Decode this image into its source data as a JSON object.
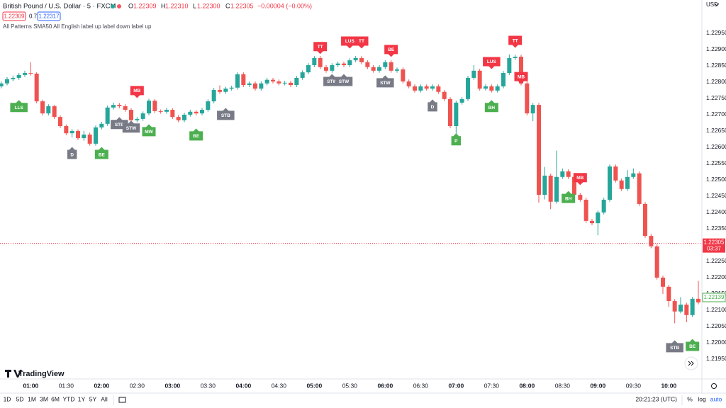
{
  "header": {
    "symbol": "British Pound / U.S. Dollar · 5 · FXCM",
    "ohlc": [
      {
        "label": "O",
        "value": "1.22309"
      },
      {
        "label": "H",
        "value": "1.22310"
      },
      {
        "label": "L",
        "value": "1.22300"
      },
      {
        "label": "C",
        "value": "1.22305"
      }
    ],
    "change": "−0.00004 (−0.00%)",
    "sell": "1.22309",
    "spread": "0.7",
    "buy": "1.22317",
    "indicator": "All Patterns SMA50 All English label up label down label up"
  },
  "currency": "USD",
  "logo": "TradingView",
  "toolbar": {
    "ranges": [
      "1D",
      "5D",
      "1M",
      "3M",
      "6M",
      "YTD",
      "1Y",
      "5Y",
      "All"
    ],
    "clock": "20:21:23 (UTC)",
    "percent": "%",
    "log": "log",
    "auto": "auto"
  },
  "chart_data": {
    "type": "candlestick",
    "up_color": "#26a69a",
    "down_color": "#ef5350",
    "xlim": [
      "00:34",
      "10:28"
    ],
    "xticks": [
      "01:00",
      "01:30",
      "02:00",
      "02:30",
      "03:00",
      "03:30",
      "04:00",
      "04:30",
      "05:00",
      "05:30",
      "06:00",
      "06:30",
      "07:00",
      "07:30",
      "08:00",
      "08:30",
      "09:00",
      "09:30",
      "10:00"
    ],
    "ylim": [
      1.21889,
      1.23052
    ],
    "yticks": [
      {
        "value": 1.2295,
        "label": "1.22950"
      },
      {
        "value": 1.229,
        "label": "1.22900"
      },
      {
        "value": 1.2285,
        "label": "1.22850"
      },
      {
        "value": 1.228,
        "label": "1.22800"
      },
      {
        "value": 1.2275,
        "label": "1.22750"
      },
      {
        "value": 1.227,
        "label": "1.22700"
      },
      {
        "value": 1.2265,
        "label": "1.22650"
      },
      {
        "value": 1.226,
        "label": "1.22600"
      },
      {
        "value": 1.2255,
        "label": "1.22550"
      },
      {
        "value": 1.225,
        "label": "1.22500"
      },
      {
        "value": 1.2245,
        "label": "1.22450"
      },
      {
        "value": 1.224,
        "label": "1.22400"
      },
      {
        "value": 1.2235,
        "label": "1.22350"
      },
      {
        "value": 1.2225,
        "label": "1.22250"
      },
      {
        "value": 1.222,
        "label": "1.22200"
      },
      {
        "value": 1.2215,
        "label": "1.22150"
      },
      {
        "value": 1.221,
        "label": "1.22100"
      },
      {
        "value": 1.2205,
        "label": "1.22050"
      },
      {
        "value": 1.22,
        "label": "1.22000"
      },
      {
        "value": 1.2195,
        "label": "1.21950"
      }
    ],
    "x": [
      "00:35",
      "00:40",
      "00:45",
      "00:50",
      "00:55",
      "01:00",
      "01:05",
      "01:10",
      "01:15",
      "01:20",
      "01:25",
      "01:30",
      "01:35",
      "01:40",
      "01:45",
      "01:50",
      "01:55",
      "02:00",
      "02:05",
      "02:10",
      "02:15",
      "02:20",
      "02:25",
      "02:30",
      "02:35",
      "02:40",
      "02:45",
      "02:50",
      "02:55",
      "03:00",
      "03:05",
      "03:10",
      "03:15",
      "03:20",
      "03:25",
      "03:30",
      "03:35",
      "03:40",
      "03:45",
      "03:50",
      "03:55",
      "04:00",
      "04:05",
      "04:10",
      "04:15",
      "04:20",
      "04:25",
      "04:30",
      "04:35",
      "04:40",
      "04:45",
      "04:50",
      "04:55",
      "05:00",
      "05:05",
      "05:10",
      "05:15",
      "05:20",
      "05:25",
      "05:30",
      "05:35",
      "05:40",
      "05:45",
      "05:50",
      "05:55",
      "06:00",
      "06:05",
      "06:10",
      "06:15",
      "06:20",
      "06:25",
      "06:30",
      "06:35",
      "06:40",
      "06:45",
      "06:50",
      "06:55",
      "07:00",
      "07:05",
      "07:10",
      "07:15",
      "07:20",
      "07:25",
      "07:30",
      "07:35",
      "07:40",
      "07:45",
      "07:50",
      "07:55",
      "08:00",
      "08:05",
      "08:10",
      "08:15",
      "08:20",
      "08:25",
      "08:30",
      "08:35",
      "08:40",
      "08:45",
      "08:50",
      "08:55",
      "09:00",
      "09:05",
      "09:10",
      "09:15",
      "09:20",
      "09:25",
      "09:30",
      "09:35",
      "09:40",
      "09:45",
      "09:50",
      "09:55",
      "10:00",
      "10:05",
      "10:10",
      "10:15",
      "10:20",
      "10:25"
    ],
    "ohlc": [
      [
        1.22787,
        1.22802,
        1.22781,
        1.22796
      ],
      [
        1.22796,
        1.22815,
        1.2279,
        1.22809
      ],
      [
        1.22809,
        1.2282,
        1.22803,
        1.22813
      ],
      [
        1.22813,
        1.22828,
        1.22807,
        1.22822
      ],
      [
        1.22822,
        1.22835,
        1.22816,
        1.22828
      ],
      [
        1.22828,
        1.22861,
        1.2282,
        1.22826
      ],
      [
        1.22826,
        1.2283,
        1.22735,
        1.22741
      ],
      [
        1.22741,
        1.22746,
        1.22698,
        1.22704
      ],
      [
        1.22704,
        1.22732,
        1.22698,
        1.22726
      ],
      [
        1.22726,
        1.2273,
        1.22687,
        1.22693
      ],
      [
        1.22693,
        1.22698,
        1.22659,
        1.22665
      ],
      [
        1.22665,
        1.2267,
        1.22637,
        1.22643
      ],
      [
        1.22643,
        1.22656,
        1.2263,
        1.2265
      ],
      [
        1.2265,
        1.22655,
        1.22622,
        1.22628
      ],
      [
        1.22628,
        1.2265,
        1.2262,
        1.22639
      ],
      [
        1.22639,
        1.22645,
        1.22605,
        1.22611
      ],
      [
        1.22611,
        1.22667,
        1.22605,
        1.22661
      ],
      [
        1.22661,
        1.22678,
        1.22655,
        1.22672
      ],
      [
        1.22672,
        1.22728,
        1.22666,
        1.22722
      ],
      [
        1.22722,
        1.22737,
        1.22716,
        1.2273
      ],
      [
        1.2273,
        1.22736,
        1.2272,
        1.22726
      ],
      [
        1.22726,
        1.22732,
        1.22709,
        1.22715
      ],
      [
        1.22715,
        1.2272,
        1.22677,
        1.22683
      ],
      [
        1.22683,
        1.22693,
        1.22677,
        1.22687
      ],
      [
        1.22687,
        1.2271,
        1.22681,
        1.22704
      ],
      [
        1.22704,
        1.22749,
        1.22698,
        1.22743
      ],
      [
        1.22743,
        1.22748,
        1.22705,
        1.22711
      ],
      [
        1.22711,
        1.22716,
        1.22703,
        1.22709
      ],
      [
        1.22709,
        1.22721,
        1.22703,
        1.22715
      ],
      [
        1.22715,
        1.2272,
        1.22687,
        1.22693
      ],
      [
        1.22693,
        1.22699,
        1.22677,
        1.22683
      ],
      [
        1.22683,
        1.22706,
        1.22677,
        1.227
      ],
      [
        1.227,
        1.22715,
        1.22694,
        1.22709
      ],
      [
        1.22709,
        1.22714,
        1.22698,
        1.22704
      ],
      [
        1.22704,
        1.22721,
        1.22698,
        1.22715
      ],
      [
        1.22715,
        1.22747,
        1.22709,
        1.22741
      ],
      [
        1.22741,
        1.22782,
        1.22735,
        1.22776
      ],
      [
        1.22776,
        1.2279,
        1.22764,
        1.2277
      ],
      [
        1.2277,
        1.22786,
        1.22764,
        1.2278
      ],
      [
        1.2278,
        1.22789,
        1.22774,
        1.22783
      ],
      [
        1.22783,
        1.2283,
        1.22777,
        1.22824
      ],
      [
        1.22824,
        1.2283,
        1.22785,
        1.22791
      ],
      [
        1.22791,
        1.22802,
        1.22785,
        1.22796
      ],
      [
        1.22796,
        1.22802,
        1.22774,
        1.2278
      ],
      [
        1.2278,
        1.22802,
        1.22774,
        1.22796
      ],
      [
        1.22796,
        1.22813,
        1.2279,
        1.22807
      ],
      [
        1.22807,
        1.22813,
        1.22796,
        1.22802
      ],
      [
        1.22802,
        1.22808,
        1.2279,
        1.22796
      ],
      [
        1.22796,
        1.22804,
        1.2279,
        1.22798
      ],
      [
        1.22798,
        1.22804,
        1.22785,
        1.22791
      ],
      [
        1.22791,
        1.22819,
        1.22785,
        1.22813
      ],
      [
        1.22813,
        1.22836,
        1.22807,
        1.2283
      ],
      [
        1.2283,
        1.22858,
        1.22824,
        1.22852
      ],
      [
        1.22852,
        1.2288,
        1.22846,
        1.22874
      ],
      [
        1.22874,
        1.2288,
        1.2284,
        1.22846
      ],
      [
        1.22846,
        1.22852,
        1.22829,
        1.22835
      ],
      [
        1.22835,
        1.22858,
        1.22829,
        1.22852
      ],
      [
        1.22852,
        1.22863,
        1.22846,
        1.22857
      ],
      [
        1.22857,
        1.22863,
        1.22846,
        1.22852
      ],
      [
        1.22852,
        1.22873,
        1.22846,
        1.22867
      ],
      [
        1.22867,
        1.2288,
        1.22861,
        1.22874
      ],
      [
        1.22874,
        1.2288,
        1.22855,
        1.22861
      ],
      [
        1.22861,
        1.22867,
        1.2284,
        1.22846
      ],
      [
        1.22846,
        1.22852,
        1.22829,
        1.22835
      ],
      [
        1.22835,
        1.22852,
        1.22829,
        1.22846
      ],
      [
        1.22846,
        1.22867,
        1.2284,
        1.22861
      ],
      [
        1.22861,
        1.22867,
        1.22829,
        1.22835
      ],
      [
        1.22835,
        1.22845,
        1.22829,
        1.22839
      ],
      [
        1.22839,
        1.22845,
        1.22796,
        1.22802
      ],
      [
        1.22802,
        1.22808,
        1.22781,
        1.22787
      ],
      [
        1.22787,
        1.22793,
        1.22768,
        1.22774
      ],
      [
        1.22774,
        1.22793,
        1.22768,
        1.22787
      ],
      [
        1.22787,
        1.22793,
        1.22774,
        1.2278
      ],
      [
        1.2278,
        1.22793,
        1.22774,
        1.22787
      ],
      [
        1.22787,
        1.22793,
        1.22764,
        1.2277
      ],
      [
        1.2277,
        1.22776,
        1.22742,
        1.22748
      ],
      [
        1.22748,
        1.22754,
        1.22659,
        1.22665
      ],
      [
        1.22665,
        1.22743,
        1.2264,
        1.22737
      ],
      [
        1.22737,
        1.22754,
        1.22731,
        1.22748
      ],
      [
        1.22748,
        1.22819,
        1.22742,
        1.22813
      ],
      [
        1.22813,
        1.22852,
        1.22807,
        1.22835
      ],
      [
        1.22835,
        1.22841,
        1.22774,
        1.2278
      ],
      [
        1.2278,
        1.22793,
        1.22774,
        1.22787
      ],
      [
        1.22787,
        1.22793,
        1.22768,
        1.22774
      ],
      [
        1.22774,
        1.22793,
        1.22768,
        1.22787
      ],
      [
        1.22787,
        1.22834,
        1.22781,
        1.22828
      ],
      [
        1.22828,
        1.22885,
        1.22822,
        1.22874
      ],
      [
        1.22874,
        1.22884,
        1.22868,
        1.22878
      ],
      [
        1.22878,
        1.22884,
        1.2279,
        1.22796
      ],
      [
        1.22796,
        1.22802,
        1.22698,
        1.22704
      ],
      [
        1.22704,
        1.22736,
        1.2268,
        1.2273
      ],
      [
        1.2273,
        1.22736,
        1.2243,
        1.22454
      ],
      [
        1.22454,
        1.2254,
        1.2244,
        1.22513
      ],
      [
        1.22513,
        1.22519,
        1.2241,
        1.22433
      ],
      [
        1.22433,
        1.2259,
        1.22427,
        1.22509
      ],
      [
        1.22509,
        1.22535,
        1.22503,
        1.22526
      ],
      [
        1.22526,
        1.22532,
        1.22503,
        1.22509
      ],
      [
        1.22509,
        1.22515,
        1.22448,
        1.22454
      ],
      [
        1.22454,
        1.2246,
        1.22433,
        1.22439
      ],
      [
        1.22439,
        1.22445,
        1.22368,
        1.22374
      ],
      [
        1.22374,
        1.2238,
        1.22361,
        1.22367
      ],
      [
        1.22367,
        1.22406,
        1.2233,
        1.224
      ],
      [
        1.224,
        1.22445,
        1.22394,
        1.22439
      ],
      [
        1.22439,
        1.22547,
        1.22433,
        1.22541
      ],
      [
        1.22541,
        1.22547,
        1.22492,
        1.22498
      ],
      [
        1.22498,
        1.22504,
        1.22466,
        1.22472
      ],
      [
        1.22472,
        1.2253,
        1.22466,
        1.22509
      ],
      [
        1.22509,
        1.22535,
        1.22503,
        1.2252
      ],
      [
        1.2252,
        1.22526,
        1.2242,
        1.22426
      ],
      [
        1.22426,
        1.22432,
        1.22322,
        1.22328
      ],
      [
        1.22328,
        1.22334,
        1.2229,
        1.22296
      ],
      [
        1.22296,
        1.22302,
        1.22194,
        1.222
      ],
      [
        1.222,
        1.22206,
        1.2215,
        1.22172
      ],
      [
        1.22172,
        1.22178,
        1.2211,
        1.22128
      ],
      [
        1.22128,
        1.22134,
        1.2206,
        1.22096
      ],
      [
        1.22096,
        1.2214,
        1.2209,
        1.22117
      ],
      [
        1.22117,
        1.22123,
        1.22063,
        1.22085
      ],
      [
        1.22085,
        1.22141,
        1.22079,
        1.22135
      ],
      [
        1.22135,
        1.2219,
        1.22118,
        1.22124
      ]
    ],
    "annotations": [
      {
        "text": "LLS",
        "x": "00:50",
        "y": 1.22722,
        "color": "#4caf50",
        "shape": "label_up"
      },
      {
        "text": "D",
        "x": "01:35",
        "y": 1.22578,
        "color": "#787b86",
        "shape": "label_up"
      },
      {
        "text": "BE",
        "x": "02:00",
        "y": 1.22578,
        "color": "#4caf50",
        "shape": "label_up"
      },
      {
        "text": "MB",
        "x": "02:30",
        "y": 1.22774,
        "color": "#f23645",
        "shape": "label_down"
      },
      {
        "text": "STB",
        "x": "02:15",
        "y": 1.2267,
        "color": "#787b86",
        "shape": "label_up"
      },
      {
        "text": "STW",
        "x": "02:25",
        "y": 1.22659,
        "color": "#787b86",
        "shape": "label_up"
      },
      {
        "text": "MW",
        "x": "02:40",
        "y": 1.22648,
        "color": "#4caf50",
        "shape": "label_up"
      },
      {
        "text": "BE",
        "x": "03:20",
        "y": 1.22635,
        "color": "#4caf50",
        "shape": "label_up"
      },
      {
        "text": "STB",
        "x": "03:45",
        "y": 1.22698,
        "color": "#787b86",
        "shape": "label_up"
      },
      {
        "text": "TT",
        "x": "05:05",
        "y": 1.22909,
        "color": "#f23645",
        "shape": "label_down"
      },
      {
        "text": "STW",
        "x": "05:15",
        "y": 1.22802,
        "color": "#787b86",
        "shape": "label_up"
      },
      {
        "text": "STW",
        "x": "05:25",
        "y": 1.22802,
        "color": "#787b86",
        "shape": "label_up"
      },
      {
        "text": "LUS",
        "x": "05:30",
        "y": 1.22926,
        "color": "#f23645",
        "shape": "label_down"
      },
      {
        "text": "TT",
        "x": "05:40",
        "y": 1.22926,
        "color": "#f23645",
        "shape": "label_down"
      },
      {
        "text": "BE",
        "x": "06:05",
        "y": 1.229,
        "color": "#f23645",
        "shape": "label_down"
      },
      {
        "text": "STW",
        "x": "06:00",
        "y": 1.22798,
        "color": "#787b86",
        "shape": "label_up"
      },
      {
        "text": "D",
        "x": "06:40",
        "y": 1.22724,
        "color": "#787b86",
        "shape": "label_up"
      },
      {
        "text": "P",
        "x": "07:00",
        "y": 1.2262,
        "color": "#4caf50",
        "shape": "label_up"
      },
      {
        "text": "LUS",
        "x": "07:30",
        "y": 1.22863,
        "color": "#f23645",
        "shape": "label_down"
      },
      {
        "text": "BH",
        "x": "07:30",
        "y": 1.22722,
        "color": "#4caf50",
        "shape": "label_up"
      },
      {
        "text": "TT",
        "x": "07:50",
        "y": 1.22928,
        "color": "#f23645",
        "shape": "label_down"
      },
      {
        "text": "MB",
        "x": "07:55",
        "y": 1.22817,
        "color": "#f23645",
        "shape": "label_down"
      },
      {
        "text": "BH",
        "x": "08:35",
        "y": 1.22443,
        "color": "#4caf50",
        "shape": "label_up"
      },
      {
        "text": "MB",
        "x": "08:45",
        "y": 1.22507,
        "color": "#f23645",
        "shape": "label_down"
      },
      {
        "text": "STB",
        "x": "10:05",
        "y": 1.21985,
        "color": "#787b86",
        "shape": "label_up"
      },
      {
        "text": "BE",
        "x": "10:20",
        "y": 1.21989,
        "color": "#4caf50",
        "shape": "label_up"
      }
    ],
    "price_line": {
      "value": 1.22305,
      "countdown": "03:37",
      "color": "#f23645"
    },
    "marker": {
      "value": 1.22139,
      "color": "#4caf50"
    }
  }
}
